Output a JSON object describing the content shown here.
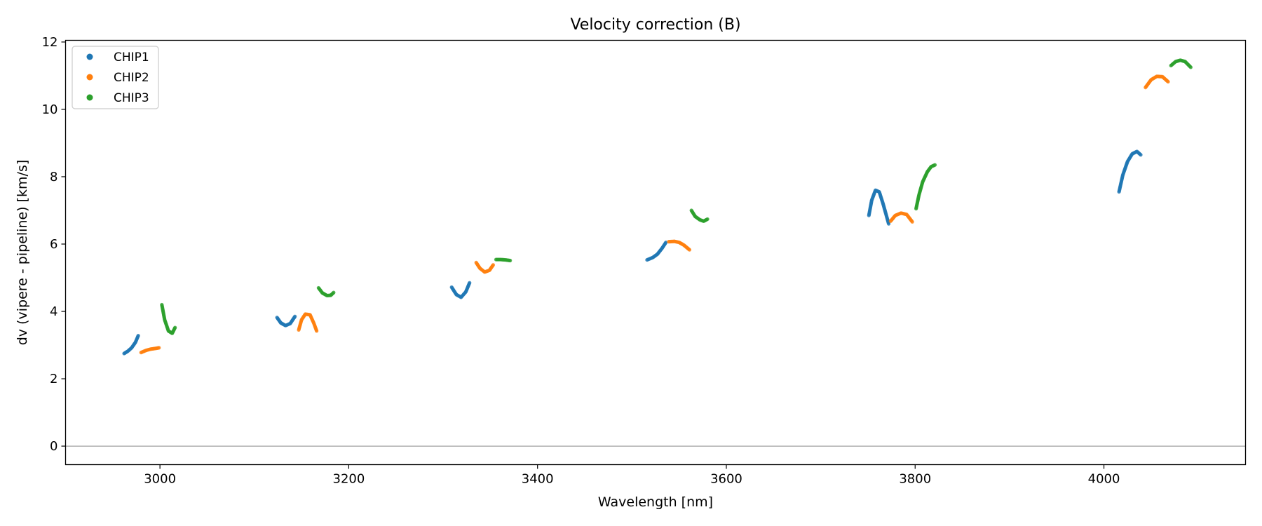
{
  "chart_data": {
    "type": "scatter",
    "title": "Velocity correction (B)",
    "xlabel": "Wavelength [nm]",
    "ylabel": "dv (vipere - pipeline) [km/s]",
    "xlim": [
      2900,
      4150
    ],
    "ylim": [
      -0.55,
      12.05
    ],
    "xticks": [
      3000,
      3200,
      3400,
      3600,
      3800,
      4000
    ],
    "yticks": [
      0,
      2,
      4,
      6,
      8,
      10,
      12
    ],
    "grid": false,
    "reference_line": 0,
    "legend_position": "top-left",
    "series": [
      {
        "name": "CHIP1",
        "color": "#1f77b4",
        "segments": [
          [
            [
              2962,
              2.75
            ],
            [
              2966,
              2.82
            ],
            [
              2970,
              2.92
            ],
            [
              2974,
              3.08
            ],
            [
              2977,
              3.28
            ]
          ],
          [
            [
              3124,
              3.82
            ],
            [
              3128,
              3.66
            ],
            [
              3133,
              3.58
            ],
            [
              3138,
              3.64
            ],
            [
              3143,
              3.85
            ]
          ],
          [
            [
              3309,
              4.72
            ],
            [
              3314,
              4.5
            ],
            [
              3319,
              4.42
            ],
            [
              3324,
              4.58
            ],
            [
              3328,
              4.85
            ]
          ],
          [
            [
              3516,
              5.53
            ],
            [
              3522,
              5.6
            ],
            [
              3527,
              5.7
            ],
            [
              3532,
              5.88
            ],
            [
              3536,
              6.05
            ]
          ],
          [
            [
              3751,
              6.85
            ],
            [
              3754,
              7.3
            ],
            [
              3758,
              7.6
            ],
            [
              3762,
              7.55
            ],
            [
              3766,
              7.2
            ],
            [
              3770,
              6.8
            ],
            [
              3772,
              6.6
            ]
          ],
          [
            [
              4016,
              7.55
            ],
            [
              4020,
              8.05
            ],
            [
              4025,
              8.45
            ],
            [
              4030,
              8.68
            ],
            [
              4035,
              8.75
            ],
            [
              4039,
              8.65
            ]
          ]
        ]
      },
      {
        "name": "CHIP2",
        "color": "#ff7f0e",
        "segments": [
          [
            [
              2980,
              2.78
            ],
            [
              2985,
              2.84
            ],
            [
              2990,
              2.88
            ],
            [
              2995,
              2.9
            ],
            [
              2999,
              2.92
            ]
          ],
          [
            [
              3147,
              3.45
            ],
            [
              3150,
              3.75
            ],
            [
              3154,
              3.92
            ],
            [
              3159,
              3.9
            ],
            [
              3163,
              3.65
            ],
            [
              3166,
              3.42
            ]
          ],
          [
            [
              3335,
              5.45
            ],
            [
              3339,
              5.28
            ],
            [
              3344,
              5.17
            ],
            [
              3349,
              5.22
            ],
            [
              3353,
              5.38
            ]
          ],
          [
            [
              3539,
              6.07
            ],
            [
              3545,
              6.08
            ],
            [
              3550,
              6.05
            ],
            [
              3555,
              5.97
            ],
            [
              3561,
              5.83
            ]
          ],
          [
            [
              3774,
              6.68
            ],
            [
              3779,
              6.85
            ],
            [
              3785,
              6.92
            ],
            [
              3791,
              6.88
            ],
            [
              3797,
              6.66
            ]
          ],
          [
            [
              4044,
              10.65
            ],
            [
              4050,
              10.88
            ],
            [
              4056,
              10.98
            ],
            [
              4062,
              10.97
            ],
            [
              4068,
              10.82
            ]
          ]
        ]
      },
      {
        "name": "CHIP3",
        "color": "#2ca02c",
        "segments": [
          [
            [
              3002,
              4.2
            ],
            [
              3005,
              3.75
            ],
            [
              3009,
              3.42
            ],
            [
              3013,
              3.35
            ],
            [
              3016,
              3.52
            ]
          ],
          [
            [
              3168,
              4.7
            ],
            [
              3172,
              4.55
            ],
            [
              3177,
              4.47
            ],
            [
              3181,
              4.48
            ],
            [
              3184,
              4.56
            ]
          ],
          [
            [
              3356,
              5.54
            ],
            [
              3361,
              5.54
            ],
            [
              3366,
              5.53
            ],
            [
              3371,
              5.51
            ]
          ],
          [
            [
              3563,
              7.0
            ],
            [
              3567,
              6.82
            ],
            [
              3572,
              6.72
            ],
            [
              3576,
              6.68
            ],
            [
              3580,
              6.74
            ]
          ],
          [
            [
              3801,
              7.05
            ],
            [
              3804,
              7.45
            ],
            [
              3808,
              7.85
            ],
            [
              3813,
              8.15
            ],
            [
              3817,
              8.3
            ],
            [
              3821,
              8.35
            ]
          ],
          [
            [
              4071,
              11.3
            ],
            [
              4076,
              11.42
            ],
            [
              4081,
              11.46
            ],
            [
              4086,
              11.42
            ],
            [
              4092,
              11.25
            ]
          ]
        ]
      }
    ]
  }
}
